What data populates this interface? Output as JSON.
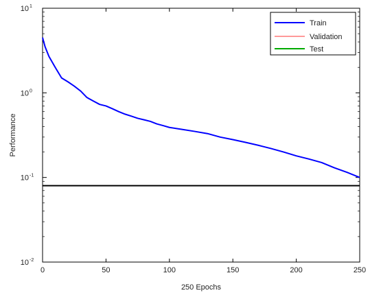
{
  "chart_data": {
    "type": "line",
    "xlabel": "250 Epochs",
    "ylabel": "Performance",
    "xlim": [
      0,
      250
    ],
    "ylim": [
      0.01,
      10
    ],
    "yscale": "log",
    "grid": false,
    "legend_position": "top-right",
    "x_ticks": [
      0,
      50,
      100,
      150,
      200,
      250
    ],
    "y_ticks": [
      {
        "value": 0.01,
        "base": "10",
        "exp": "-2"
      },
      {
        "value": 0.1,
        "base": "10",
        "exp": "-1"
      },
      {
        "value": 1,
        "base": "10",
        "exp": "0"
      },
      {
        "value": 10,
        "base": "10",
        "exp": "1"
      }
    ],
    "series": [
      {
        "name": "Train",
        "color": "#0000ff",
        "x": [
          0,
          2,
          5,
          10,
          15,
          20,
          25,
          30,
          35,
          40,
          45,
          50,
          55,
          60,
          65,
          70,
          75,
          80,
          85,
          90,
          95,
          100,
          110,
          120,
          130,
          140,
          150,
          160,
          170,
          180,
          190,
          200,
          210,
          220,
          230,
          240,
          250
        ],
        "y": [
          4.5,
          3.5,
          2.7,
          2.0,
          1.5,
          1.35,
          1.2,
          1.05,
          0.88,
          0.8,
          0.73,
          0.7,
          0.65,
          0.6,
          0.56,
          0.53,
          0.5,
          0.48,
          0.46,
          0.43,
          0.41,
          0.39,
          0.37,
          0.35,
          0.33,
          0.3,
          0.28,
          0.26,
          0.24,
          0.22,
          0.2,
          0.18,
          0.165,
          0.15,
          0.13,
          0.115,
          0.1
        ]
      },
      {
        "name": "Validation",
        "color": "#ff9999",
        "x": [],
        "y": []
      },
      {
        "name": "Test",
        "color": "#00aa00",
        "x": [],
        "y": []
      }
    ],
    "goal_line": {
      "value": 0.08,
      "color": "#000000"
    }
  }
}
